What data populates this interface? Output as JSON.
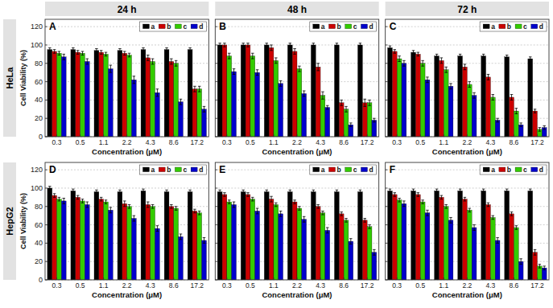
{
  "chart_data": [
    {
      "type": "bar",
      "title": "A",
      "subtitle": "24 h",
      "annotations": [
        "HeLa"
      ],
      "x_label": "Concentration (μM)",
      "y_label": "Cell Viability (%)",
      "categories": [
        "0.3",
        "0.5",
        "1.1",
        "2.2",
        "4.3",
        "8.6",
        "17.2"
      ],
      "series": [
        {
          "name": "a",
          "color": "#000000",
          "values": [
            95,
            95,
            94,
            94,
            95,
            95,
            95
          ],
          "errors": [
            2,
            2,
            2,
            2,
            2,
            2,
            2
          ]
        },
        {
          "name": "b",
          "color": "#cc0000",
          "values": [
            93,
            92,
            92,
            91,
            86,
            82,
            52
          ],
          "errors": [
            2,
            2,
            2,
            2,
            3,
            3,
            3
          ]
        },
        {
          "name": "c",
          "color": "#33cc00",
          "values": [
            91,
            91,
            90,
            89,
            82,
            80,
            52
          ],
          "errors": [
            2,
            2,
            2,
            2,
            3,
            3,
            3
          ]
        },
        {
          "name": "d",
          "color": "#0000cc",
          "values": [
            87,
            82,
            74,
            62,
            48,
            38,
            30
          ],
          "errors": [
            3,
            3,
            4,
            4,
            4,
            3,
            3
          ]
        }
      ],
      "ylim": [
        0,
        128
      ],
      "yticks": [
        0,
        20,
        40,
        60,
        80,
        100,
        120
      ],
      "grid": true,
      "legend": "upper right"
    },
    {
      "type": "bar",
      "title": "B",
      "subtitle": "48 h",
      "x_label": "Concentration (μM)",
      "categories": [
        "0.3",
        "0.5",
        "1.1",
        "2.2",
        "4.3",
        "8.6",
        "17.2"
      ],
      "series": [
        {
          "name": "a",
          "color": "#000000",
          "values": [
            100,
            100,
            100,
            100,
            100,
            100,
            100
          ],
          "errors": [
            2,
            2,
            2,
            2,
            2,
            2,
            2
          ]
        },
        {
          "name": "b",
          "color": "#cc0000",
          "values": [
            100,
            100,
            97,
            93,
            76,
            37,
            37
          ],
          "errors": [
            2,
            2,
            3,
            3,
            4,
            3,
            4
          ]
        },
        {
          "name": "c",
          "color": "#33cc00",
          "values": [
            88,
            88,
            83,
            74,
            45,
            30,
            37
          ],
          "errors": [
            3,
            3,
            3,
            3,
            4,
            3,
            3
          ]
        },
        {
          "name": "d",
          "color": "#0000cc",
          "values": [
            71,
            70,
            58,
            47,
            32,
            13,
            18
          ],
          "errors": [
            3,
            3,
            3,
            3,
            2,
            2,
            2
          ]
        }
      ],
      "ylim": [
        0,
        128
      ],
      "yticks": [
        0,
        20,
        40,
        60,
        80,
        100,
        120
      ],
      "grid": true,
      "legend": "upper right",
      "tick_labels": "x"
    },
    {
      "type": "bar",
      "title": "C",
      "subtitle": "72 h",
      "x_label": "Concentration (μM)",
      "categories": [
        "0.3",
        "0.5",
        "1.1",
        "2.2",
        "4.3",
        "8.6",
        "17.2"
      ],
      "series": [
        {
          "name": "a",
          "color": "#000000",
          "values": [
            97,
            92,
            88,
            88,
            88,
            87,
            85
          ],
          "errors": [
            2,
            2,
            2,
            2,
            2,
            2,
            2
          ]
        },
        {
          "name": "b",
          "color": "#cc0000",
          "values": [
            93,
            90,
            83,
            76,
            65,
            43,
            28
          ],
          "errors": [
            2,
            2,
            3,
            3,
            3,
            3,
            2
          ]
        },
        {
          "name": "c",
          "color": "#33cc00",
          "values": [
            85,
            80,
            73,
            57,
            43,
            28,
            8
          ],
          "errors": [
            3,
            3,
            3,
            3,
            3,
            3,
            2
          ]
        },
        {
          "name": "d",
          "color": "#0000cc",
          "values": [
            80,
            62,
            55,
            45,
            18,
            13,
            10
          ],
          "errors": [
            3,
            3,
            3,
            3,
            2,
            2,
            2
          ]
        }
      ],
      "ylim": [
        0,
        128
      ],
      "yticks": [
        0,
        20,
        40,
        60,
        80,
        100,
        120
      ],
      "grid": true,
      "legend": "upper right",
      "tick_labels": "x"
    },
    {
      "type": "bar",
      "title": "D",
      "annotations": [
        "HepG2"
      ],
      "x_label": "Concentration (μM)",
      "y_label": "Cell Viability (%)",
      "categories": [
        "0.3",
        "0.5",
        "1.1",
        "2.2",
        "4.3",
        "8.6",
        "17.2"
      ],
      "series": [
        {
          "name": "a",
          "color": "#000000",
          "values": [
            100,
            97,
            96,
            96,
            97,
            96,
            96
          ],
          "errors": [
            2,
            2,
            2,
            2,
            2,
            2,
            2
          ]
        },
        {
          "name": "b",
          "color": "#cc0000",
          "values": [
            92,
            90,
            88,
            83,
            82,
            80,
            75
          ],
          "errors": [
            2,
            2,
            2,
            3,
            3,
            2,
            2
          ]
        },
        {
          "name": "c",
          "color": "#33cc00",
          "values": [
            88,
            86,
            85,
            80,
            80,
            78,
            73
          ],
          "errors": [
            2,
            2,
            2,
            2,
            2,
            2,
            2
          ]
        },
        {
          "name": "d",
          "color": "#0000cc",
          "values": [
            86,
            82,
            76,
            67,
            56,
            47,
            43
          ],
          "errors": [
            3,
            3,
            3,
            3,
            3,
            3,
            3
          ]
        }
      ],
      "ylim": [
        0,
        128
      ],
      "yticks": [
        0,
        20,
        40,
        60,
        80,
        100,
        120
      ],
      "grid": true,
      "legend": "upper right"
    },
    {
      "type": "bar",
      "title": "E",
      "x_label": "Concentration (μM)",
      "categories": [
        "0.3",
        "0.5",
        "1.1",
        "2.2",
        "4.3",
        "8.6",
        "17.2"
      ],
      "series": [
        {
          "name": "a",
          "color": "#000000",
          "values": [
            96,
            96,
            96,
            96,
            96,
            96,
            96
          ],
          "errors": [
            2,
            2,
            2,
            2,
            2,
            2,
            2
          ]
        },
        {
          "name": "b",
          "color": "#cc0000",
          "values": [
            93,
            93,
            88,
            85,
            80,
            72,
            65
          ],
          "errors": [
            2,
            2,
            3,
            2,
            2,
            2,
            2
          ]
        },
        {
          "name": "c",
          "color": "#33cc00",
          "values": [
            85,
            88,
            82,
            78,
            73,
            65,
            58
          ],
          "errors": [
            2,
            2,
            2,
            2,
            2,
            2,
            2
          ]
        },
        {
          "name": "d",
          "color": "#0000cc",
          "values": [
            82,
            75,
            72,
            66,
            54,
            42,
            30
          ],
          "errors": [
            3,
            3,
            3,
            3,
            3,
            3,
            3
          ]
        }
      ],
      "ylim": [
        0,
        128
      ],
      "yticks": [
        0,
        20,
        40,
        60,
        80,
        100,
        120
      ],
      "grid": true,
      "legend": "upper right",
      "tick_labels": "x"
    },
    {
      "type": "bar",
      "title": "F",
      "x_label": "Concentration (μM)",
      "categories": [
        "0.3",
        "0.5",
        "1.1",
        "2.2",
        "4.3",
        "8.6",
        "17.2"
      ],
      "series": [
        {
          "name": "a",
          "color": "#000000",
          "values": [
            97,
            97,
            97,
            97,
            97,
            97,
            97
          ],
          "errors": [
            2,
            2,
            2,
            2,
            2,
            2,
            2
          ]
        },
        {
          "name": "b",
          "color": "#cc0000",
          "values": [
            93,
            93,
            90,
            88,
            82,
            72,
            30
          ],
          "errors": [
            2,
            2,
            2,
            2,
            2,
            2,
            3
          ]
        },
        {
          "name": "c",
          "color": "#33cc00",
          "values": [
            87,
            85,
            80,
            76,
            68,
            57,
            15
          ],
          "errors": [
            2,
            2,
            2,
            2,
            2,
            2,
            2
          ]
        },
        {
          "name": "d",
          "color": "#0000cc",
          "values": [
            83,
            73,
            65,
            57,
            43,
            20,
            13
          ],
          "errors": [
            3,
            3,
            3,
            3,
            3,
            3,
            2
          ]
        }
      ],
      "ylim": [
        0,
        128
      ],
      "yticks": [
        0,
        20,
        40,
        60,
        80,
        100,
        120
      ],
      "grid": true,
      "legend": "upper right",
      "tick_labels": "x"
    }
  ]
}
